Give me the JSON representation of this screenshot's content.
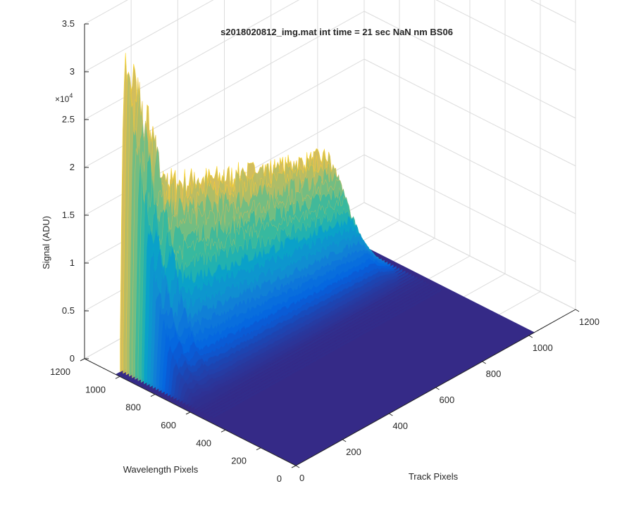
{
  "chart_data": {
    "type": "surface",
    "title": "s2018020812_img.mat int time = 21 sec  NaN nm BS06",
    "xlabel": "Track Pixels",
    "ylabel": "Wavelength Pixels",
    "zlabel": "Signal (ADU)",
    "z_multiplier_label": "×10",
    "z_multiplier_exp": "4",
    "xlim": [
      0,
      1200
    ],
    "ylim": [
      0,
      1200
    ],
    "zlim": [
      0,
      35000
    ],
    "x_ticks": [
      "0",
      "200",
      "400",
      "600",
      "800",
      "1000",
      "1200"
    ],
    "y_ticks": [
      "0",
      "200",
      "400",
      "600",
      "800",
      "1000",
      "1200"
    ],
    "z_ticks": [
      "0",
      "0.5",
      "1",
      "1.5",
      "2",
      "2.5",
      "3",
      "3.5"
    ],
    "grid": true,
    "colormap": [
      "#352a87",
      "#0363e1",
      "#1485d4",
      "#06a7c6",
      "#38b99e",
      "#92bf73",
      "#d9ba56",
      "#fcce2e",
      "#f9fb0e"
    ],
    "surface": {
      "x_extent": [
        0,
        1024
      ],
      "y_extent": [
        0,
        1024
      ],
      "baseline_value": 200,
      "peak_wavelength_pixel": 1000,
      "peak_track_pixels": [
        40,
        80,
        140
      ],
      "peak_values": [
        33000,
        32500,
        28000
      ],
      "signal_track_range": [
        20,
        1000
      ],
      "signal_wavelength_range": [
        500,
        1024
      ]
    }
  }
}
